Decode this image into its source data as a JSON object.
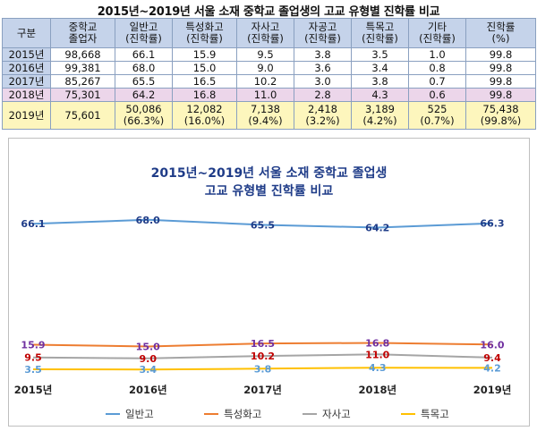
{
  "table": {
    "title": "2015년~2019년 서울 소재 중학교 졸업생의 고교 유형별 진학률 비교",
    "headers": [
      [
        "구분"
      ],
      [
        "중학교",
        "졸업자"
      ],
      [
        "일반고",
        "(진학률)"
      ],
      [
        "특성화고",
        "(진학률)"
      ],
      [
        "자사고",
        "(진학률)"
      ],
      [
        "자공고",
        "(진학률)"
      ],
      [
        "특목고",
        "(진학률)"
      ],
      [
        "기타",
        "(진학률)"
      ],
      [
        "진학률",
        "(%)"
      ]
    ],
    "rows": [
      [
        "2015년",
        "98,668",
        "66.1",
        "15.9",
        "9.5",
        "3.8",
        "3.5",
        "1.0",
        "99.8"
      ],
      [
        "2016년",
        "99,381",
        "68.0",
        "15.0",
        "9.0",
        "3.6",
        "3.4",
        "0.8",
        "99.8"
      ],
      [
        "2017년",
        "85,267",
        "65.5",
        "16.5",
        "10.2",
        "3.0",
        "3.8",
        "0.7",
        "99.8"
      ],
      [
        "2018년",
        "75,301",
        "64.2",
        "16.8",
        "11.0",
        "2.8",
        "4.3",
        "0.6",
        "99.8"
      ]
    ],
    "last_row": {
      "year": "2019년",
      "graduates": "75,601",
      "cells": [
        [
          "50,086",
          "(66.3%)"
        ],
        [
          "12,082",
          "(16.0%)"
        ],
        [
          "7,138",
          "(9.4%)"
        ],
        [
          "2,418",
          "(3.2%)"
        ],
        [
          "3,189",
          "(4.2%)"
        ],
        [
          "525",
          "(0.7%)"
        ],
        [
          "75,438",
          "(99.8%)"
        ]
      ]
    }
  },
  "chart_data": {
    "type": "line",
    "title": "2015년~2019년 서울 소재 중학교 졸업생",
    "subtitle": "고교 유형별 진학률 비교",
    "categories": [
      "2015년",
      "2016년",
      "2017년",
      "2018년",
      "2019년"
    ],
    "series": [
      {
        "name": "일반고",
        "values": [
          66.1,
          68.0,
          65.5,
          64.2,
          66.3
        ],
        "labels": [
          "66.1",
          "68.0",
          "65.5",
          "64.2",
          "66.3"
        ],
        "color": "#5b9bd5",
        "label_color": "#1f3c88"
      },
      {
        "name": "특성화고",
        "values": [
          15.9,
          15.0,
          16.5,
          16.8,
          16.0
        ],
        "labels": [
          "15.9",
          "15.0",
          "16.5",
          "16.8",
          "16.0"
        ],
        "color": "#ed7d31",
        "label_color": "#7030a0"
      },
      {
        "name": "자사고",
        "values": [
          9.5,
          9.0,
          10.2,
          11.0,
          9.4
        ],
        "labels": [
          "9.5",
          "9.0",
          "10.2",
          "11.0",
          "9.4"
        ],
        "color": "#a5a5a5",
        "label_color": "#c00000"
      },
      {
        "name": "특목고",
        "values": [
          3.5,
          3.4,
          3.8,
          4.3,
          4.2
        ],
        "labels": [
          "3.5",
          "3.4",
          "3.8",
          "4.3",
          "4.2"
        ],
        "color": "#ffc000",
        "label_color": "#5b9bd5"
      }
    ],
    "legend_position": "bottom",
    "grid": false
  }
}
